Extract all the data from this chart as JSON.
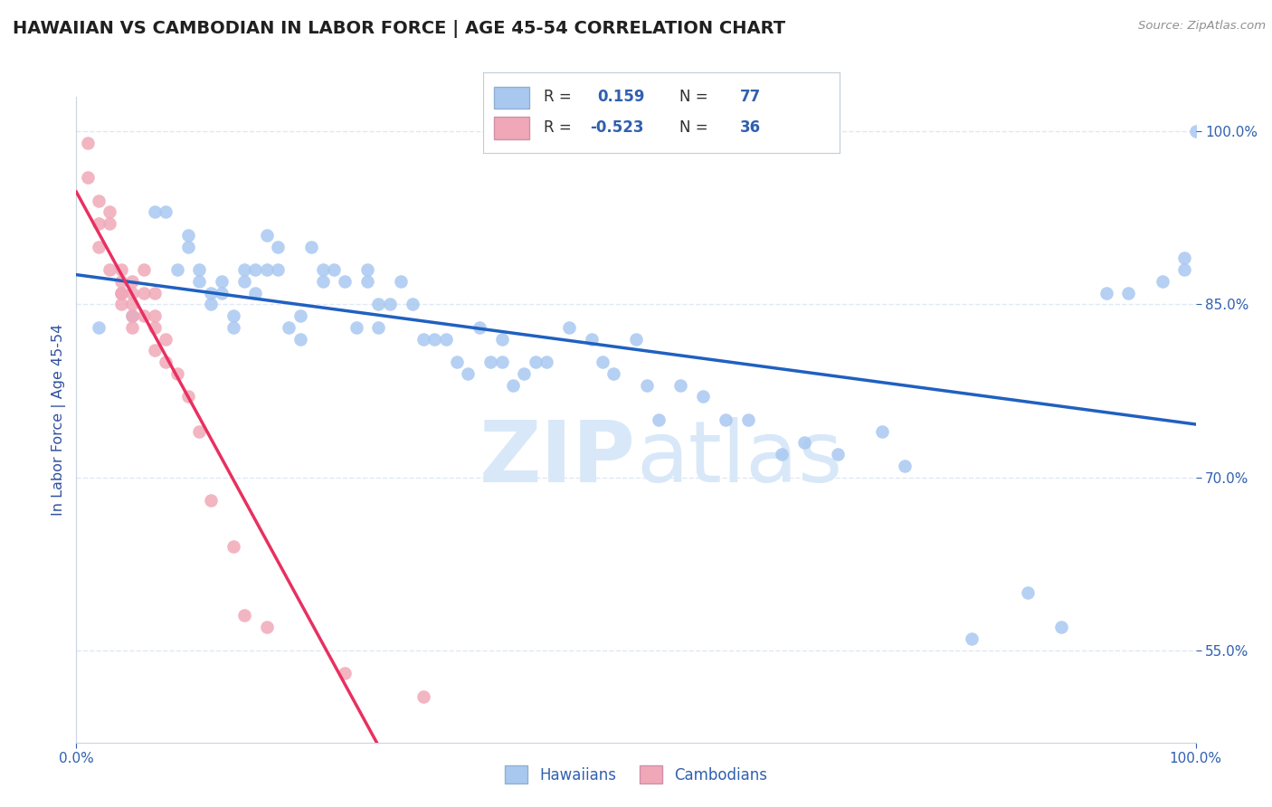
{
  "title": "HAWAIIAN VS CAMBODIAN IN LABOR FORCE | AGE 45-54 CORRELATION CHART",
  "source_text": "Source: ZipAtlas.com",
  "ylabel": "In Labor Force | Age 45-54",
  "xlim": [
    0.0,
    1.0
  ],
  "ylim": [
    0.47,
    1.03
  ],
  "y_ticks_right": [
    0.55,
    0.7,
    0.85,
    1.0
  ],
  "y_tick_labels_right": [
    "55.0%",
    "70.0%",
    "85.0%",
    "100.0%"
  ],
  "hawaiian_color": "#a8c8f0",
  "cambodian_color": "#f0a8b8",
  "hawaiian_line_color": "#2060c0",
  "cambodian_line_color": "#e83060",
  "cambodian_line_dash_color": "#c0c0c0",
  "watermark_color": "#d8e8f8",
  "legend_R1": "0.159",
  "legend_N1": "77",
  "legend_R2": "-0.523",
  "legend_N2": "36",
  "hawaiian_x": [
    0.02,
    0.05,
    0.07,
    0.08,
    0.09,
    0.1,
    0.1,
    0.11,
    0.11,
    0.12,
    0.12,
    0.13,
    0.13,
    0.14,
    0.14,
    0.15,
    0.15,
    0.16,
    0.16,
    0.17,
    0.17,
    0.18,
    0.18,
    0.19,
    0.2,
    0.2,
    0.21,
    0.22,
    0.22,
    0.23,
    0.24,
    0.25,
    0.26,
    0.26,
    0.27,
    0.27,
    0.28,
    0.29,
    0.3,
    0.31,
    0.32,
    0.33,
    0.34,
    0.35,
    0.36,
    0.37,
    0.38,
    0.38,
    0.39,
    0.4,
    0.41,
    0.42,
    0.44,
    0.46,
    0.47,
    0.48,
    0.5,
    0.51,
    0.52,
    0.54,
    0.56,
    0.58,
    0.6,
    0.63,
    0.65,
    0.68,
    0.72,
    0.74,
    0.8,
    0.85,
    0.88,
    0.92,
    0.94,
    0.97,
    0.99,
    0.99,
    1.0
  ],
  "hawaiian_y": [
    0.83,
    0.84,
    0.93,
    0.93,
    0.88,
    0.91,
    0.9,
    0.87,
    0.88,
    0.86,
    0.85,
    0.86,
    0.87,
    0.83,
    0.84,
    0.87,
    0.88,
    0.88,
    0.86,
    0.88,
    0.91,
    0.9,
    0.88,
    0.83,
    0.84,
    0.82,
    0.9,
    0.87,
    0.88,
    0.88,
    0.87,
    0.83,
    0.87,
    0.88,
    0.85,
    0.83,
    0.85,
    0.87,
    0.85,
    0.82,
    0.82,
    0.82,
    0.8,
    0.79,
    0.83,
    0.8,
    0.8,
    0.82,
    0.78,
    0.79,
    0.8,
    0.8,
    0.83,
    0.82,
    0.8,
    0.79,
    0.82,
    0.78,
    0.75,
    0.78,
    0.77,
    0.75,
    0.75,
    0.72,
    0.73,
    0.72,
    0.74,
    0.71,
    0.56,
    0.6,
    0.57,
    0.86,
    0.86,
    0.87,
    0.88,
    0.89,
    1.0
  ],
  "cambodian_x": [
    0.01,
    0.01,
    0.02,
    0.02,
    0.02,
    0.03,
    0.03,
    0.03,
    0.04,
    0.04,
    0.04,
    0.04,
    0.04,
    0.05,
    0.05,
    0.05,
    0.05,
    0.05,
    0.06,
    0.06,
    0.06,
    0.07,
    0.07,
    0.07,
    0.07,
    0.08,
    0.08,
    0.09,
    0.1,
    0.11,
    0.12,
    0.14,
    0.15,
    0.17,
    0.24,
    0.31
  ],
  "cambodian_y": [
    0.99,
    0.96,
    0.92,
    0.94,
    0.9,
    0.93,
    0.92,
    0.88,
    0.88,
    0.87,
    0.86,
    0.86,
    0.85,
    0.87,
    0.86,
    0.85,
    0.84,
    0.83,
    0.88,
    0.86,
    0.84,
    0.86,
    0.84,
    0.83,
    0.81,
    0.82,
    0.8,
    0.79,
    0.77,
    0.74,
    0.68,
    0.64,
    0.58,
    0.57,
    0.53,
    0.51
  ],
  "background_color": "#ffffff",
  "grid_color": "#e0e8f4",
  "title_color": "#202020",
  "axis_label_color": "#3050a0",
  "tick_color": "#3060b0"
}
